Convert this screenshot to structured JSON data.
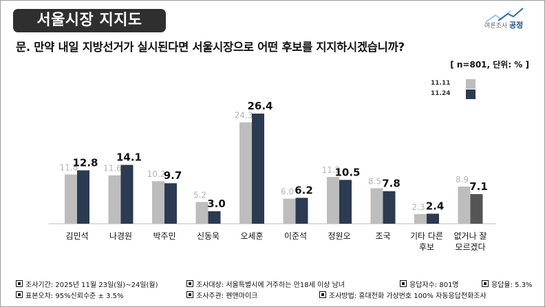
{
  "header": {
    "title": "서울시장 지지도",
    "logo_name": "여론조사공정",
    "logo_small": "여론조사",
    "logo_big": "공정"
  },
  "question": "문. 만약 내일 지방선거가 실시된다면 서울시장으로 어떤 후보를 지지하시겠습니까?",
  "unit_note": "[ n=801, 단위: % ]",
  "legend": [
    {
      "label": "11.11",
      "color": "#bdbdbd"
    },
    {
      "label": "11.24",
      "color": "#2c3a52"
    }
  ],
  "chart_data": {
    "type": "bar",
    "categories": [
      "김민석",
      "나경원",
      "박주민",
      "신동욱",
      "오세훈",
      "이준석",
      "정원오",
      "조국",
      "기타 다른\n후보",
      "없거나 잘\n모르겠다"
    ],
    "series": [
      {
        "name": "11.11",
        "color": "#bdbdbd",
        "values": [
          11.8,
          11.6,
          10.2,
          5.2,
          24.3,
          6.0,
          11.2,
          8.5,
          2.3,
          8.9
        ]
      },
      {
        "name": "11.24",
        "color": "#2c3a52",
        "values": [
          12.8,
          14.1,
          9.7,
          3.0,
          26.4,
          6.2,
          10.5,
          7.8,
          2.4,
          7.1
        ]
      }
    ],
    "last_category_second_color": "#555555",
    "ylim": [
      0,
      27
    ]
  },
  "footer": {
    "row1": [
      "조사기간: 2025년 11월 23일(일)~24일(월)",
      "조사대상: 서울특별시에 거주하는 만18세 이상 남녀",
      "응답자수: 801명",
      "응답율: 5.3%"
    ],
    "row2": [
      "표본오차: 95%신뢰수준 ± 3.5%",
      "조사주관: 펜앤마이크",
      "조사방법: 휴대전화 가상번호 100% 자동응답전화조사"
    ]
  }
}
